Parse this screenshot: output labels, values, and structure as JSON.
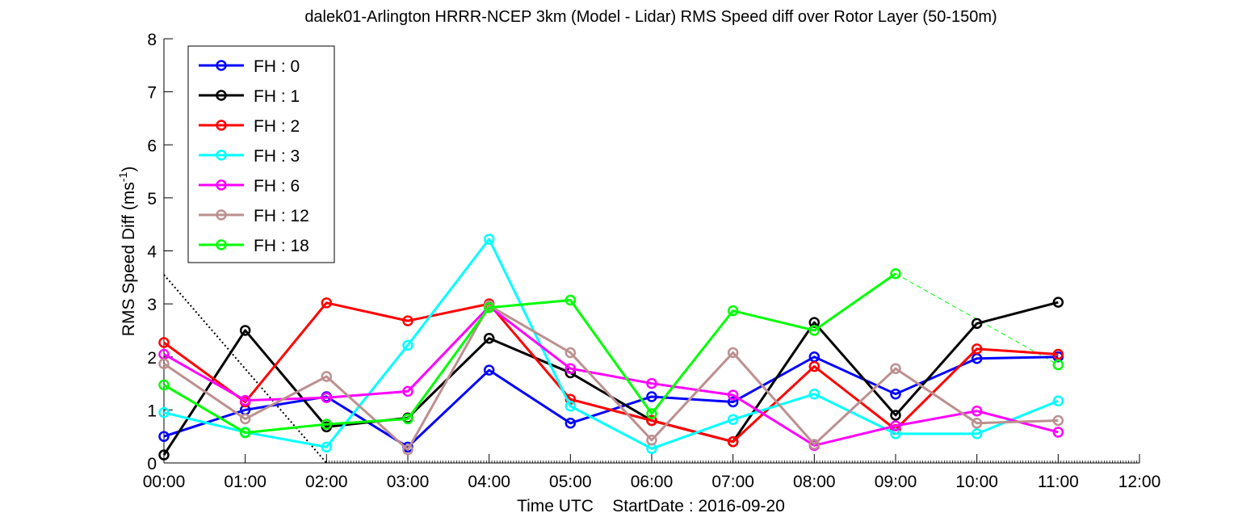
{
  "chart_data": {
    "type": "line",
    "title": "dalek01-Arlington HRRR-NCEP 3km (Model - Lidar) RMS Speed diff over Rotor Layer (50-150m)",
    "xlabel": "Time UTC    StartDate : 2016-09-20",
    "ylabel_main": "RMS Speed Diff (ms",
    "ylabel_sup": "-1",
    "ylabel_end": ")",
    "ylim": [
      0,
      8
    ],
    "xlim_hours": [
      0,
      12
    ],
    "x_ticks": [
      "00:00",
      "01:00",
      "02:00",
      "03:00",
      "04:00",
      "05:00",
      "06:00",
      "07:00",
      "08:00",
      "09:00",
      "10:00",
      "11:00",
      "12:00"
    ],
    "y_ticks": [
      "0",
      "1",
      "2",
      "3",
      "4",
      "5",
      "6",
      "7",
      "8"
    ],
    "x_hours": [
      0,
      1,
      2,
      3,
      4,
      5,
      6,
      7,
      8,
      9,
      10,
      11
    ],
    "legend_position": "top-left",
    "grid": false,
    "series": [
      {
        "name": "FH : 0",
        "color": "#0000ff",
        "values": [
          0.5,
          1.0,
          1.25,
          0.3,
          1.75,
          0.75,
          1.25,
          1.15,
          2.0,
          1.3,
          1.97,
          2.0
        ]
      },
      {
        "name": "FH : 1",
        "color": "#000000",
        "values": [
          0.15,
          2.5,
          0.68,
          0.85,
          2.35,
          1.7,
          0.8,
          0.4,
          2.65,
          0.9,
          2.63,
          3.03
        ]
      },
      {
        "name": "FH : 2",
        "color": "#ff0000",
        "values": [
          2.27,
          1.15,
          3.02,
          2.68,
          3.0,
          1.2,
          0.8,
          0.4,
          1.82,
          0.63,
          2.15,
          2.05
        ]
      },
      {
        "name": "FH : 3",
        "color": "#00ffff",
        "values": [
          0.95,
          0.58,
          0.3,
          2.22,
          4.22,
          1.07,
          0.27,
          0.82,
          1.3,
          0.55,
          0.55,
          1.17
        ]
      },
      {
        "name": "FH : 6",
        "color": "#ff00ff",
        "values": [
          2.05,
          1.18,
          1.23,
          1.35,
          2.95,
          1.78,
          1.5,
          1.28,
          0.33,
          0.7,
          0.98,
          0.58
        ]
      },
      {
        "name": "FH : 12",
        "color": "#bc8f8f",
        "values": [
          1.87,
          0.83,
          1.63,
          0.25,
          2.97,
          2.08,
          0.43,
          2.08,
          0.35,
          1.78,
          0.75,
          0.8
        ]
      },
      {
        "name": "FH : 18",
        "color": "#00ff00",
        "values": [
          1.47,
          0.57,
          0.73,
          0.83,
          2.93,
          3.07,
          0.93,
          2.87,
          2.5,
          3.57,
          null,
          1.85
        ]
      }
    ],
    "annotations": [
      {
        "kind": "dotted-line",
        "color": "#000000",
        "from": [
          0,
          3.55
        ],
        "to": [
          2.0,
          0
        ]
      },
      {
        "kind": "dashed-line",
        "color": "#00ff00",
        "from": [
          9,
          3.57
        ],
        "to": [
          11,
          1.85
        ]
      }
    ]
  }
}
